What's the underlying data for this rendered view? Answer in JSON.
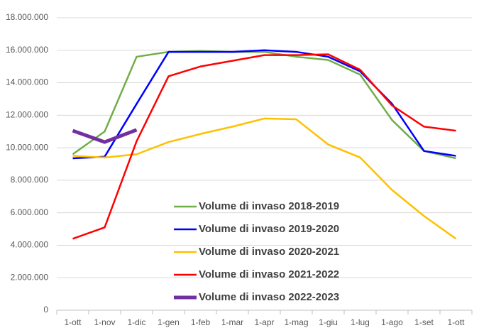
{
  "chart_data": {
    "type": "line",
    "categories": [
      "1-ott",
      "1-nov",
      "1-dic",
      "1-gen",
      "1-feb",
      "1-mar",
      "1-apr",
      "1-mag",
      "1-giu",
      "1-lug",
      "1-ago",
      "1-set",
      "1-ott"
    ],
    "series": [
      {
        "name": "Volume di invaso 2018-2019",
        "color": "#70ad47",
        "values": [
          9600000,
          11000000,
          15600000,
          15900000,
          15950000,
          15900000,
          15900000,
          15600000,
          15400000,
          14500000,
          11700000,
          9800000,
          9350000
        ]
      },
      {
        "name": "Volume di invaso 2019-2020",
        "color": "#0000ff",
        "values": [
          9350000,
          9450000,
          12700000,
          15900000,
          15900000,
          15900000,
          16000000,
          15900000,
          15600000,
          14700000,
          12700000,
          9800000,
          9500000
        ]
      },
      {
        "name": "Volume di invaso 2020-2021",
        "color": "#ffc000",
        "values": [
          9500000,
          9400000,
          9600000,
          10350000,
          10850000,
          11300000,
          11800000,
          11750000,
          10200000,
          9400000,
          7400000,
          5800000,
          4400000
        ]
      },
      {
        "name": "Volume di invaso 2021-2022",
        "color": "#ff0000",
        "values": [
          4400000,
          5100000,
          10400000,
          14400000,
          15000000,
          15350000,
          15700000,
          15700000,
          15750000,
          14800000,
          12600000,
          11300000,
          11050000
        ]
      },
      {
        "name": "Volume di invaso 2022-2023",
        "color": "#7030a0",
        "width": 5,
        "values": [
          11050000,
          10350000,
          11100000,
          null,
          null,
          null,
          null,
          null,
          null,
          null,
          null,
          null,
          null
        ]
      }
    ],
    "ylim": [
      0,
      18000000
    ],
    "yticks": [
      0,
      {
        "value": 2000000,
        "label": "2.000.000"
      },
      {
        "value": 4000000,
        "label": "4.000.000"
      },
      {
        "value": 6000000,
        "label": "6.000.000"
      },
      {
        "value": 8000000,
        "label": "8.000.000"
      },
      {
        "value": 10000000,
        "label": "10.000.000"
      },
      {
        "value": 12000000,
        "label": "12.000.000"
      },
      {
        "value": 14000000,
        "label": "14.000.000"
      },
      {
        "value": 16000000,
        "label": "16.000.000"
      },
      {
        "value": 18000000,
        "label": "18.000.000"
      }
    ],
    "grid": true
  }
}
